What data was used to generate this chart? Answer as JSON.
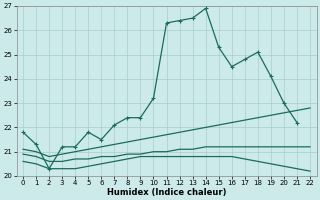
{
  "xlabel": "Humidex (Indice chaleur)",
  "xlim": [
    -0.5,
    22.5
  ],
  "ylim": [
    20,
    27
  ],
  "yticks": [
    20,
    21,
    22,
    23,
    24,
    25,
    26,
    27
  ],
  "xticks": [
    0,
    1,
    2,
    3,
    4,
    5,
    6,
    7,
    8,
    9,
    10,
    11,
    12,
    13,
    14,
    15,
    16,
    17,
    18,
    19,
    20,
    21,
    22
  ],
  "bg_color": "#cceaea",
  "grid_color": "#aacccc",
  "line_color": "#1a6b5a",
  "line1_x": [
    0,
    1,
    2,
    3,
    4,
    5,
    6,
    7,
    8,
    9,
    10,
    11,
    12,
    13,
    14,
    15,
    16,
    17,
    18,
    19,
    20,
    21
  ],
  "line1_y": [
    21.8,
    21.3,
    20.3,
    21.2,
    21.2,
    21.8,
    21.5,
    22.1,
    22.4,
    22.4,
    23.2,
    26.3,
    26.4,
    26.5,
    26.9,
    25.3,
    24.5,
    24.8,
    25.1,
    24.1,
    23.0,
    22.2
  ],
  "line2_x": [
    0,
    1,
    2,
    3,
    4,
    5,
    6,
    7,
    8,
    9,
    10,
    11,
    12,
    13,
    14,
    15,
    16,
    17,
    18,
    19,
    20,
    21,
    22
  ],
  "line2_y": [
    21.1,
    21.0,
    20.8,
    20.9,
    21.0,
    21.1,
    21.2,
    21.3,
    21.4,
    21.5,
    21.6,
    21.7,
    21.8,
    21.9,
    22.0,
    22.1,
    22.2,
    22.3,
    22.4,
    22.5,
    22.6,
    22.7,
    22.8
  ],
  "line3_x": [
    0,
    1,
    2,
    3,
    4,
    5,
    6,
    7,
    8,
    9,
    10,
    11,
    12,
    13,
    14,
    15,
    16,
    17,
    18,
    19,
    20,
    21,
    22
  ],
  "line3_y": [
    20.9,
    20.8,
    20.6,
    20.6,
    20.7,
    20.7,
    20.8,
    20.8,
    20.9,
    20.9,
    21.0,
    21.0,
    21.1,
    21.1,
    21.2,
    21.2,
    21.2,
    21.2,
    21.2,
    21.2,
    21.2,
    21.2,
    21.2
  ],
  "line4_x": [
    0,
    1,
    2,
    3,
    4,
    5,
    6,
    7,
    8,
    9,
    10,
    11,
    12,
    13,
    14,
    15,
    16,
    17,
    18,
    19,
    20,
    21,
    22
  ],
  "line4_y": [
    20.6,
    20.5,
    20.3,
    20.3,
    20.3,
    20.4,
    20.5,
    20.6,
    20.7,
    20.8,
    20.8,
    20.8,
    20.8,
    20.8,
    20.8,
    20.8,
    20.8,
    20.7,
    20.6,
    20.5,
    20.4,
    20.3,
    20.2
  ],
  "xlabel_fontsize": 6,
  "tick_fontsize": 5,
  "linewidth": 0.9,
  "marker_size": 3
}
